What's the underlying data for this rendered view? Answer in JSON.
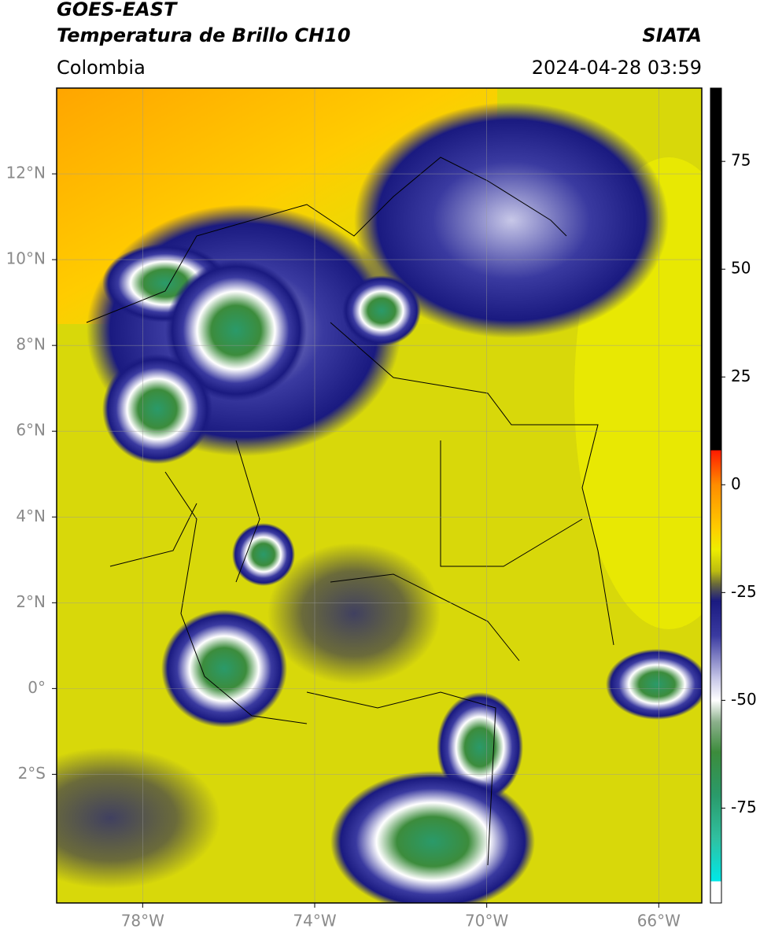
{
  "header": {
    "title": "GOES-EAST",
    "subtitle": "Temperatura de Brillo CH10",
    "source": "SIATA",
    "region": "Colombia",
    "timestamp": "2024-04-28 03:59"
  },
  "map": {
    "xlim": [
      -80,
      -65
    ],
    "ylim": [
      -5,
      14
    ],
    "grid": true,
    "xticks": [
      {
        "value": -78,
        "label": "78°W"
      },
      {
        "value": -74,
        "label": "74°W"
      },
      {
        "value": -70,
        "label": "70°W"
      },
      {
        "value": -66,
        "label": "66°W"
      }
    ],
    "yticks": [
      {
        "value": 12,
        "label": "12°N"
      },
      {
        "value": 10,
        "label": "10°N"
      },
      {
        "value": 8,
        "label": "8°N"
      },
      {
        "value": 6,
        "label": "6°N"
      },
      {
        "value": 4,
        "label": "4°N"
      },
      {
        "value": 2,
        "label": "2°N"
      },
      {
        "value": 0,
        "label": "0°"
      },
      {
        "value": -2,
        "label": "2°S"
      }
    ]
  },
  "colorbar": {
    "lim": [
      -97,
      92
    ],
    "ticks": [
      75,
      50,
      25,
      0,
      -25,
      -50,
      -75
    ],
    "stops": [
      {
        "value": 92,
        "color": "#000000"
      },
      {
        "value": 8,
        "color": "#000000"
      },
      {
        "value": 8,
        "color": "#ff1a00"
      },
      {
        "value": 0,
        "color": "#ff8c00"
      },
      {
        "value": -10,
        "color": "#ffcc00"
      },
      {
        "value": -15,
        "color": "#eeee00"
      },
      {
        "value": -20,
        "color": "#bdbd10"
      },
      {
        "value": -23,
        "color": "#6b6b3a"
      },
      {
        "value": -25,
        "color": "#404060"
      },
      {
        "value": -27,
        "color": "#1a1a80"
      },
      {
        "value": -35,
        "color": "#3a3aa0"
      },
      {
        "value": -45,
        "color": "#c8c8e8"
      },
      {
        "value": -50,
        "color": "#ffffff"
      },
      {
        "value": -55,
        "color": "#8cb08c"
      },
      {
        "value": -62,
        "color": "#3c8c3c"
      },
      {
        "value": -72,
        "color": "#2a9a6a"
      },
      {
        "value": -82,
        "color": "#30c0a0"
      },
      {
        "value": -92,
        "color": "#00e8e8"
      },
      {
        "value": -92,
        "color": "#ffffff"
      },
      {
        "value": -97,
        "color": "#ffffff"
      }
    ]
  }
}
